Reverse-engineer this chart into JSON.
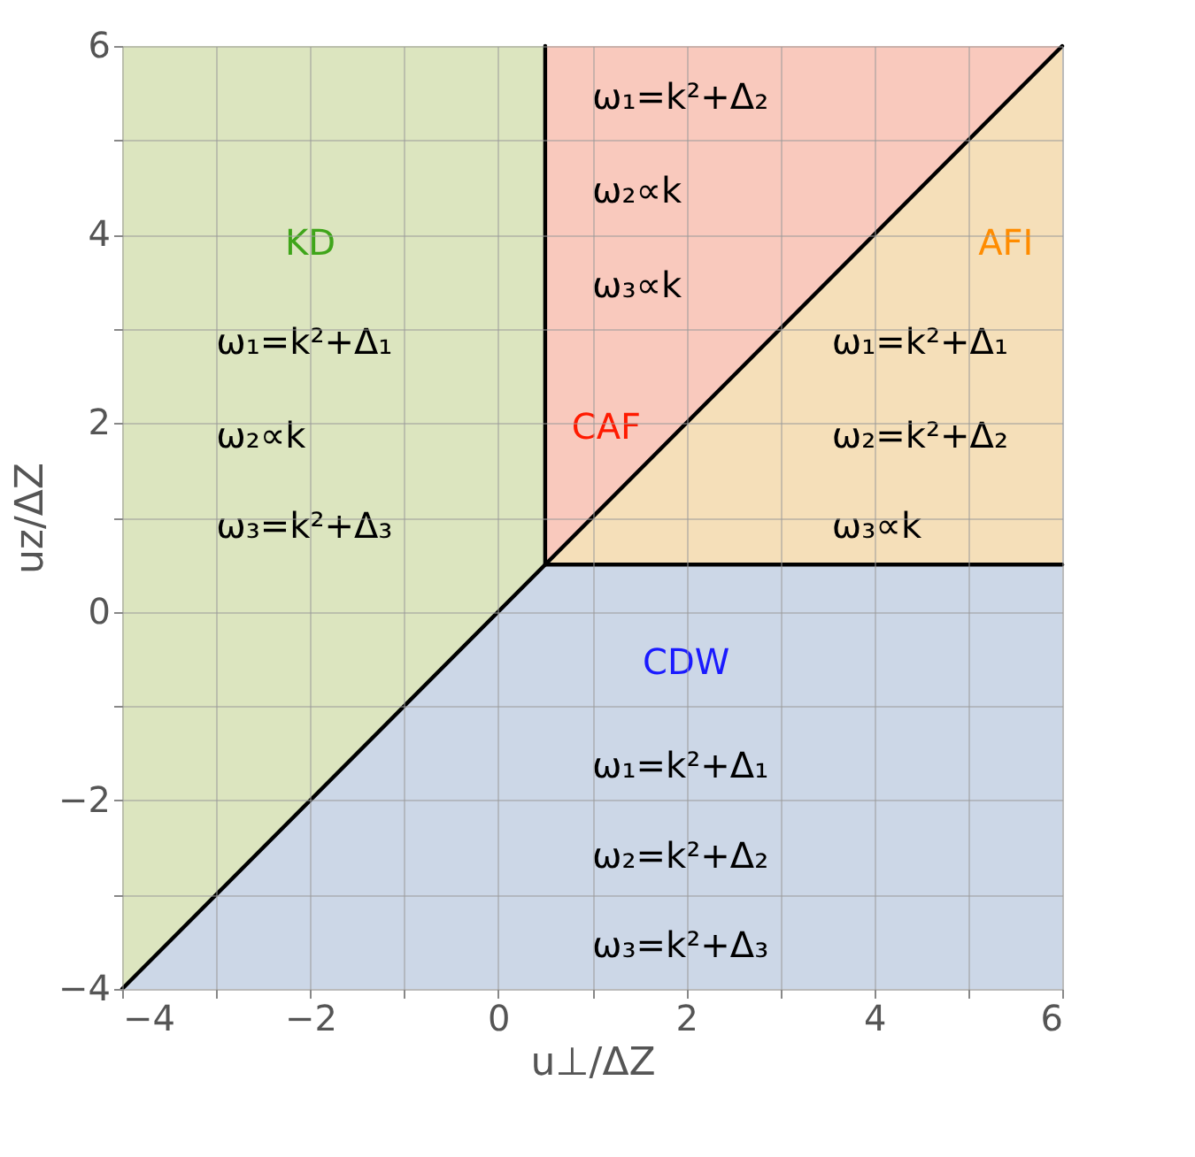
{
  "chart_data": {
    "type": "line",
    "xlabel": "u⊥/ΔZ",
    "ylabel": "uz/ΔZ",
    "xlim": [
      -4,
      6
    ],
    "ylim": [
      -4,
      6
    ],
    "xticks": [
      -4,
      {
        "value": -3,
        "label": null
      },
      -2,
      {
        "value": -1,
        "label": null
      },
      0,
      {
        "value": 1,
        "label": null
      },
      2,
      {
        "value": 3,
        "label": null
      },
      4,
      {
        "value": 5,
        "label": null
      },
      6
    ],
    "yticks": [
      -4,
      {
        "value": -3,
        "label": null
      },
      -2,
      {
        "value": -1,
        "label": null
      },
      0,
      {
        "value": 1,
        "label": null
      },
      2,
      {
        "value": 3,
        "label": null
      },
      4,
      {
        "value": 5,
        "label": null
      },
      6
    ],
    "grid": true,
    "series": [
      {
        "color": "#000000",
        "x": [
          -4,
          6
        ],
        "values": [
          -4,
          6
        ]
      },
      {
        "color": "#000000",
        "x": [
          0.5,
          0.5
        ],
        "values": [
          0.5,
          6
        ]
      },
      {
        "color": "#000000",
        "x": [
          0.5,
          6
        ],
        "values": [
          0.5,
          0.5
        ]
      }
    ],
    "annotations": [
      "KD",
      "CAF",
      "AFI",
      "CDW",
      "ω₁=k²+Δ₁",
      "ω₂∝k",
      "ω₃=k²+Δ₃",
      "ω₁=k²+Δ₂",
      "ω₂∝k",
      "ω₃∝k",
      "ω₁=k²+Δ₁",
      "ω₂=k²+Δ₂",
      "ω₃∝k",
      "ω₁=k²+Δ₁",
      "ω₂=k²+Δ₂",
      "ω₃=k²+Δ₃"
    ]
  }
}
